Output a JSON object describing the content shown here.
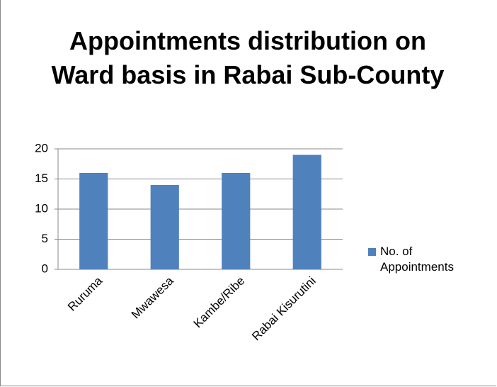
{
  "chart_data": {
    "type": "bar",
    "title": "Appointments distribution on Ward basis in Rabai Sub-County",
    "categories": [
      "Ruruma",
      "Mwawesa",
      "Kambe/Ribe",
      "Rabai Kisurutini"
    ],
    "series": [
      {
        "name": "No. of Appointments",
        "color": "#4f81bd",
        "values": [
          16,
          14,
          16,
          19
        ]
      }
    ],
    "ylim": [
      0,
      20
    ],
    "yticks": [
      0,
      5,
      10,
      15,
      20
    ],
    "grid": true,
    "legend": "right"
  }
}
